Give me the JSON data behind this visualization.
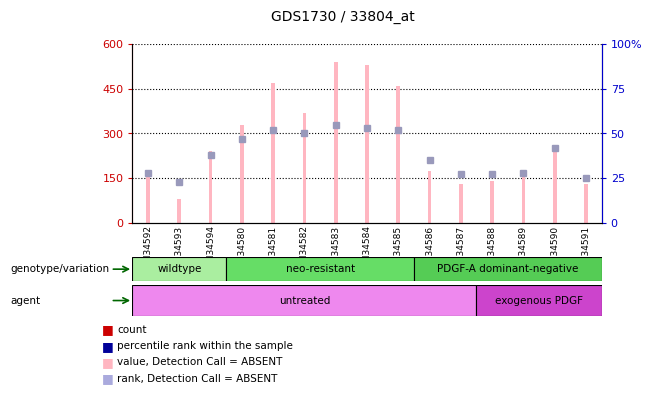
{
  "title": "GDS1730 / 33804_at",
  "samples": [
    "GSM34592",
    "GSM34593",
    "GSM34594",
    "GSM34580",
    "GSM34581",
    "GSM34582",
    "GSM34583",
    "GSM34584",
    "GSM34585",
    "GSM34586",
    "GSM34587",
    "GSM34588",
    "GSM34589",
    "GSM34590",
    "GSM34591"
  ],
  "bar_values": [
    175,
    80,
    240,
    330,
    470,
    370,
    540,
    530,
    460,
    175,
    130,
    140,
    165,
    240,
    130
  ],
  "rank_values": [
    28,
    23,
    38,
    47,
    52,
    50,
    55,
    53,
    52,
    35,
    27,
    27,
    28,
    42,
    25
  ],
  "ylim_left": [
    0,
    600
  ],
  "ylim_right": [
    0,
    100
  ],
  "yticks_left": [
    0,
    150,
    300,
    450,
    600
  ],
  "yticks_right": [
    0,
    25,
    50,
    75,
    100
  ],
  "bar_color": "#FFB6C1",
  "rank_color": "#9999BB",
  "bar_width": 0.12,
  "grid_color": "black",
  "genotype_groups": [
    {
      "label": "wildtype",
      "start": 0,
      "end": 2,
      "color": "#AAEEA0"
    },
    {
      "label": "neo-resistant",
      "start": 2,
      "end": 8,
      "color": "#66DD66"
    },
    {
      "label": "PDGF-A dominant-negative",
      "start": 8,
      "end": 14,
      "color": "#55CC55"
    }
  ],
  "agent_groups": [
    {
      "label": "untreated",
      "start": 0,
      "end": 10,
      "color": "#EE88EE"
    },
    {
      "label": "exogenous PDGF",
      "start": 10,
      "end": 14,
      "color": "#CC44CC"
    }
  ],
  "legend_items": [
    {
      "label": "count",
      "color": "#CC0000"
    },
    {
      "label": "percentile rank within the sample",
      "color": "#000099"
    },
    {
      "label": "value, Detection Call = ABSENT",
      "color": "#FFB6C1"
    },
    {
      "label": "rank, Detection Call = ABSENT",
      "color": "#AAAADD"
    }
  ],
  "left_axis_color": "#CC0000",
  "right_axis_color": "#0000CC",
  "bg_color": "#FFFFFF",
  "genotype_label": "genotype/variation",
  "agent_label": "agent"
}
